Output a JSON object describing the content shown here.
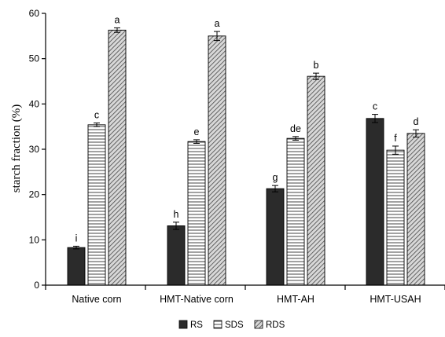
{
  "chart_data": {
    "type": "bar",
    "title": "",
    "xlabel": "",
    "ylabel": "starch fraction (%)",
    "ylim": [
      0,
      60
    ],
    "yticks": [
      0,
      10,
      20,
      30,
      40,
      50,
      60
    ],
    "grid": false,
    "legend_position": "bottom",
    "categories": [
      "Native corn",
      "HMT-Native corn",
      "HMT-AH",
      "HMT-USAH"
    ],
    "series": [
      {
        "name": "RS",
        "pattern": "solid",
        "color": "#2b2b2b",
        "values": [
          8.3,
          13.1,
          21.3,
          36.8
        ],
        "errors": [
          0.3,
          0.8,
          0.7,
          0.9
        ],
        "labels": [
          "i",
          "h",
          "g",
          "c"
        ]
      },
      {
        "name": "SDS",
        "pattern": "horizontal-lines",
        "color": "#555555",
        "values": [
          35.4,
          31.7,
          32.4,
          29.8
        ],
        "errors": [
          0.4,
          0.4,
          0.4,
          0.9
        ],
        "labels": [
          "c",
          "e",
          "de",
          "f"
        ]
      },
      {
        "name": "RDS",
        "pattern": "diagonal-lines",
        "color": "#555555",
        "values": [
          56.3,
          55.0,
          46.1,
          33.5
        ],
        "errors": [
          0.5,
          1.0,
          0.7,
          0.8
        ],
        "labels": [
          "a",
          "a",
          "b",
          "d"
        ]
      }
    ]
  }
}
